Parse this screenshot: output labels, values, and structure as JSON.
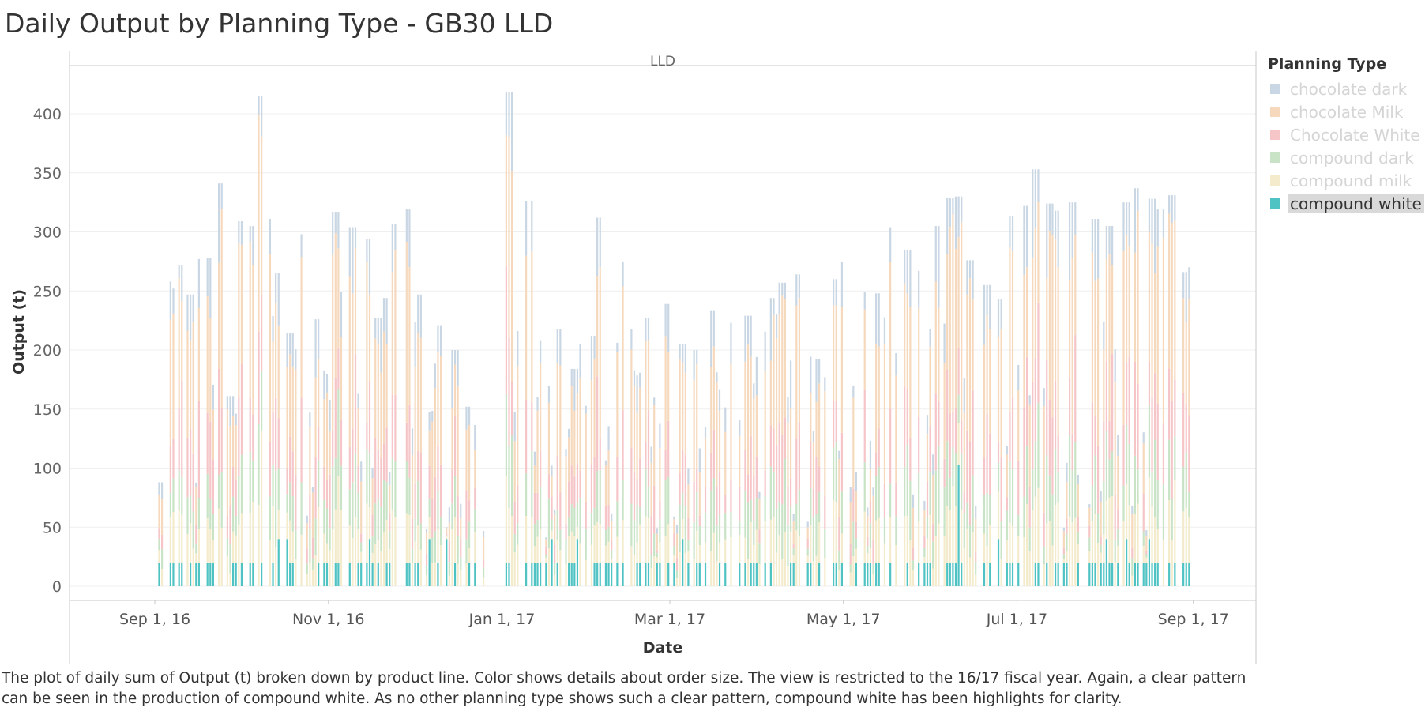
{
  "title": "Daily Output by Planning Type - GB30 LLD",
  "caption": "The plot of daily sum of Output (t) broken down by product line.  Color shows details about order size. The view is restricted to the 16/17 fiscal year. Again, a clear pattern can be seen in the production of compound white. As no other planning type shows such a clear pattern, compound white has been highlights for clarity.",
  "legend": {
    "title": "Planning Type",
    "items": [
      {
        "label": "chocolate dark",
        "color": "#c9d6e3",
        "highlight": false
      },
      {
        "label": "chocolate Milk",
        "color": "#f6d9bd",
        "highlight": false
      },
      {
        "label": "Chocolate White",
        "color": "#f5c5c8",
        "highlight": false
      },
      {
        "label": "compound dark",
        "color": "#c8e3c5",
        "highlight": false
      },
      {
        "label": "compound milk",
        "color": "#f3ebcb",
        "highlight": false
      },
      {
        "label": "compound white",
        "color": "#4fc3c3",
        "highlight": true
      }
    ]
  },
  "chart_data": {
    "type": "bar",
    "stacked": true,
    "panel_label": "LLD",
    "xlabel": "Date",
    "ylabel": "Output (t)",
    "ylim": [
      -10,
      440
    ],
    "yticks": [
      0,
      50,
      100,
      150,
      200,
      250,
      300,
      350,
      400
    ],
    "xlim": [
      "2016-08-02",
      "2017-09-23"
    ],
    "xticks": [
      {
        "date": "2016-09-01",
        "label": "Sep 1, 16"
      },
      {
        "date": "2016-11-01",
        "label": "Nov 1, 16"
      },
      {
        "date": "2017-01-01",
        "label": "Jan 1, 17"
      },
      {
        "date": "2017-03-01",
        "label": "Mar 1, 17"
      },
      {
        "date": "2017-05-01",
        "label": "May 1, 17"
      },
      {
        "date": "2017-07-01",
        "label": "Jul 1, 17"
      },
      {
        "date": "2017-09-01",
        "label": "Sep 1, 17"
      }
    ],
    "grid": true,
    "legend_position": "right",
    "series_names": [
      "chocolate dark",
      "chocolate Milk",
      "Chocolate White",
      "compound dark",
      "compound milk",
      "compound white"
    ],
    "series_colors": [
      "#c9d6e3",
      "#f6d9bd",
      "#f5c5c8",
      "#c8e3c5",
      "#f3ebcb",
      "#4fc3c3"
    ],
    "series_order_bottom_to_top": [
      "compound white",
      "compound milk",
      "compound dark",
      "Chocolate White",
      "chocolate Milk",
      "chocolate dark"
    ],
    "approximate_daily_totals": [
      {
        "date": "2016-09-03",
        "total": 88
      },
      {
        "date": "2016-09-05",
        "total": 258
      },
      {
        "date": "2016-09-07",
        "total": 252
      },
      {
        "date": "2016-09-10",
        "total": 272
      },
      {
        "date": "2016-09-13",
        "total": 247
      },
      {
        "date": "2016-09-17",
        "total": 277
      },
      {
        "date": "2016-09-19",
        "total": 278
      },
      {
        "date": "2016-09-24",
        "total": 341
      },
      {
        "date": "2016-09-27",
        "total": 161
      },
      {
        "date": "2016-10-01",
        "total": 309
      },
      {
        "date": "2016-10-04",
        "total": 305
      },
      {
        "date": "2016-10-08",
        "total": 415
      },
      {
        "date": "2016-10-10",
        "total": 311
      },
      {
        "date": "2016-10-14",
        "total": 265
      },
      {
        "date": "2016-10-18",
        "total": 214
      },
      {
        "date": "2016-10-22",
        "total": 298
      },
      {
        "date": "2016-10-28",
        "total": 226
      },
      {
        "date": "2016-11-03",
        "total": 317
      },
      {
        "date": "2016-11-06",
        "total": 249
      },
      {
        "date": "2016-11-09",
        "total": 304
      },
      {
        "date": "2016-11-14",
        "total": 294
      },
      {
        "date": "2016-11-18",
        "total": 227
      },
      {
        "date": "2016-11-20",
        "total": 244
      },
      {
        "date": "2016-11-24",
        "total": 307
      },
      {
        "date": "2016-11-28",
        "total": 319
      },
      {
        "date": "2016-12-03",
        "total": 247
      },
      {
        "date": "2016-12-10",
        "total": 221
      },
      {
        "date": "2016-12-15",
        "total": 200
      },
      {
        "date": "2016-12-20",
        "total": 152
      },
      {
        "date": "2016-12-27",
        "total": 44
      },
      {
        "date": "2016-12-30",
        "total": 38
      },
      {
        "date": "2017-01-03",
        "total": 418
      },
      {
        "date": "2017-01-07",
        "total": 216
      },
      {
        "date": "2017-01-10",
        "total": 326
      },
      {
        "date": "2017-01-21",
        "total": 218
      },
      {
        "date": "2017-01-26",
        "total": 184
      },
      {
        "date": "2017-01-28",
        "total": 205
      },
      {
        "date": "2017-02-01",
        "total": 212
      },
      {
        "date": "2017-02-04",
        "total": 312
      },
      {
        "date": "2017-02-13",
        "total": 275
      },
      {
        "date": "2017-02-20",
        "total": 227
      },
      {
        "date": "2017-02-27",
        "total": 239
      },
      {
        "date": "2017-03-05",
        "total": 205
      },
      {
        "date": "2017-03-09",
        "total": 200
      },
      {
        "date": "2017-03-15",
        "total": 233
      },
      {
        "date": "2017-03-22",
        "total": 223
      },
      {
        "date": "2017-03-28",
        "total": 229
      },
      {
        "date": "2017-04-05",
        "total": 244
      },
      {
        "date": "2017-04-09",
        "total": 257
      },
      {
        "date": "2017-04-15",
        "total": 264
      },
      {
        "date": "2017-04-22",
        "total": 192
      },
      {
        "date": "2017-04-27",
        "total": 260
      },
      {
        "date": "2017-05-01",
        "total": 275
      },
      {
        "date": "2017-05-07",
        "total": 249
      },
      {
        "date": "2017-05-13",
        "total": 248
      },
      {
        "date": "2017-05-17",
        "total": 304
      },
      {
        "date": "2017-05-23",
        "total": 285
      },
      {
        "date": "2017-05-27",
        "total": 267
      },
      {
        "date": "2017-06-03",
        "total": 305
      },
      {
        "date": "2017-06-07",
        "total": 329
      },
      {
        "date": "2017-06-10",
        "total": 330
      },
      {
        "date": "2017-06-14",
        "total": 276
      },
      {
        "date": "2017-06-20",
        "total": 255
      },
      {
        "date": "2017-06-25",
        "total": 243
      },
      {
        "date": "2017-06-29",
        "total": 313
      },
      {
        "date": "2017-07-03",
        "total": 322
      },
      {
        "date": "2017-07-07",
        "total": 353
      },
      {
        "date": "2017-07-12",
        "total": 324
      },
      {
        "date": "2017-07-15",
        "total": 318
      },
      {
        "date": "2017-07-20",
        "total": 325
      },
      {
        "date": "2017-07-24",
        "total": 356
      },
      {
        "date": "2017-07-28",
        "total": 311
      },
      {
        "date": "2017-08-02",
        "total": 305
      },
      {
        "date": "2017-08-08",
        "total": 325
      },
      {
        "date": "2017-08-12",
        "total": 337
      },
      {
        "date": "2017-08-17",
        "total": 328
      },
      {
        "date": "2017-08-20",
        "total": 319
      },
      {
        "date": "2017-08-24",
        "total": 331
      },
      {
        "date": "2017-08-28",
        "total": 266
      },
      {
        "date": "2017-08-31",
        "total": 270
      },
      {
        "date": "2017-09-01",
        "total": 259
      }
    ],
    "compound_white_typical_value": 20,
    "compound_white_peak": {
      "date": "2017-06-10",
      "value": 103
    }
  }
}
